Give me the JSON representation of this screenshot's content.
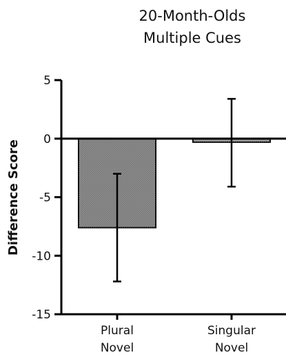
{
  "chart_data": {
    "type": "bar",
    "title_lines": [
      "20-Month-Olds",
      "Multiple Cues"
    ],
    "xlabel": "",
    "ylabel": "Difference Score",
    "ylim": [
      -15,
      5
    ],
    "yticks": [
      5,
      0,
      -5,
      -10,
      -15
    ],
    "categories": [
      {
        "lines": [
          "Plural",
          "Novel"
        ]
      },
      {
        "lines": [
          "Singular",
          "Novel"
        ]
      }
    ],
    "values": [
      -7.6,
      -0.3
    ],
    "error_low": [
      -12.2,
      -4.1
    ],
    "error_high": [
      -3.0,
      3.4
    ],
    "bar_colors": [
      "#8a8a8a",
      "#a9a9a9"
    ],
    "grid": false,
    "legend": "none"
  }
}
